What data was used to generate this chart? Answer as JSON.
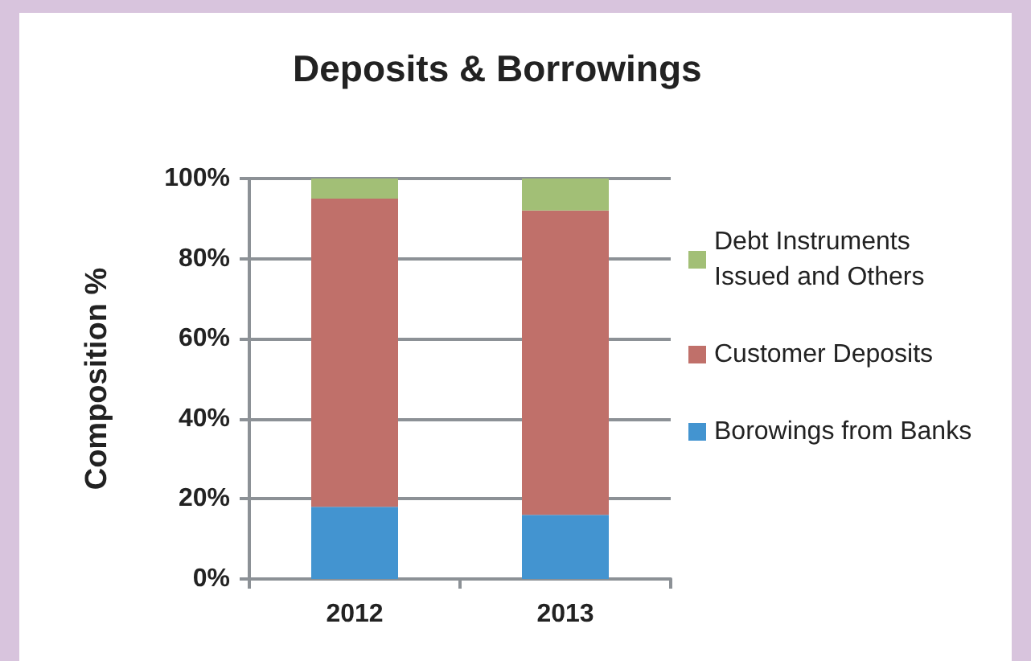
{
  "chart_data": {
    "type": "bar",
    "title": "Deposits & Borrowings",
    "ylabel": "Composition %",
    "categories": [
      "2012",
      "2013"
    ],
    "stacked": true,
    "series": [
      {
        "name": "Borowings from Banks",
        "color": "#4394d0",
        "values": [
          18,
          16
        ]
      },
      {
        "name": "Customer Deposits",
        "color": "#c0706a",
        "values": [
          77,
          76
        ]
      },
      {
        "name": "Debt Instruments Issued and Others",
        "color": "#a2bf76",
        "values": [
          5,
          8
        ]
      }
    ],
    "ylim": [
      0,
      100
    ],
    "yticks": [
      {
        "value": 0,
        "label": "0%"
      },
      {
        "value": 20,
        "label": "20%"
      },
      {
        "value": 40,
        "label": "40%"
      },
      {
        "value": 60,
        "label": "60%"
      },
      {
        "value": 80,
        "label": "80%"
      },
      {
        "value": 100,
        "label": "100%"
      }
    ],
    "grid": "y",
    "legend": "right"
  }
}
